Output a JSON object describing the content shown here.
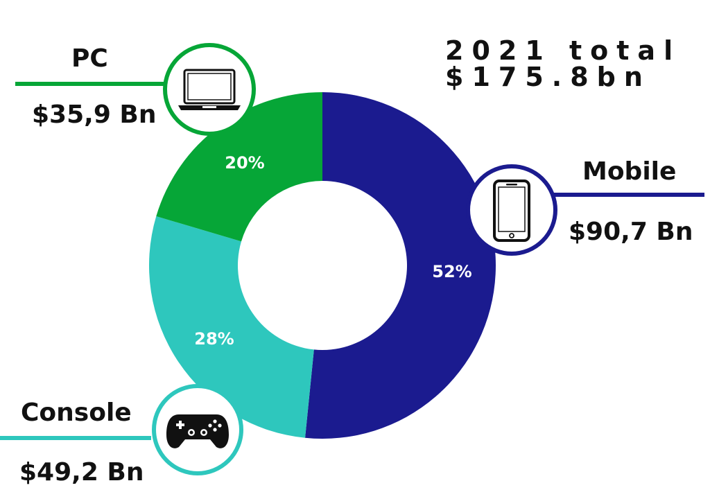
{
  "chart_data": {
    "type": "pie",
    "title": "",
    "total": [
      "2021 total",
      "$175.8bn"
    ],
    "center_hole": true,
    "series": [
      {
        "name": "Mobile",
        "value_label": "$90,7 Bn",
        "value": 90.7,
        "percent": 52,
        "percent_label": "52%",
        "color": "#1b1b8f",
        "icon": "smartphone-icon"
      },
      {
        "name": "Console",
        "value_label": "$49,2 Bn",
        "value": 49.2,
        "percent": 28,
        "percent_label": "28%",
        "color": "#2ec7bd",
        "icon": "gamepad-icon"
      },
      {
        "name": "PC",
        "value_label": "$35,9 Bn",
        "value": 35.9,
        "percent": 20,
        "percent_label": "20%",
        "color": "#06a637",
        "icon": "laptop-icon"
      }
    ]
  }
}
